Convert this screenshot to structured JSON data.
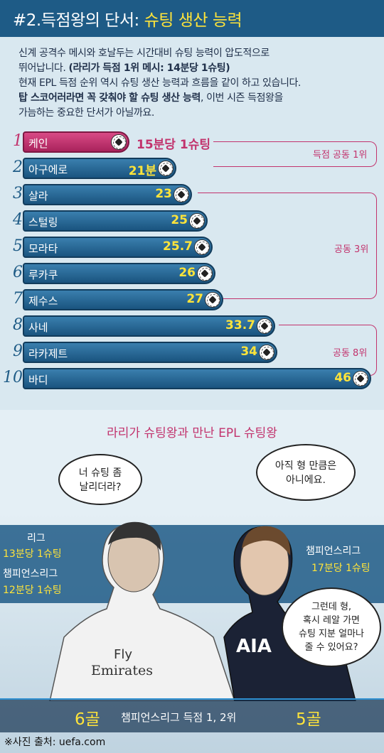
{
  "header": {
    "prefix": "#2.득점왕의 단서: ",
    "highlight": "슈팅 생산 능력"
  },
  "intro": {
    "line1": "신계 공격수 메시와 호날두는 시간대비 슈팅 능력이 압도적으로",
    "line2a": "뛰어납니다. ",
    "line2b": "(라리가 득점 1위 메시: 14분당 1슈팅)",
    "line3": "현재 EPL 득점 순위 역시 슈팅 생산 능력과 흐름을 같이 하고 있습니다.",
    "line4a": "탑 스코어러라면 꼭 갖춰야 할 슈팅 생산 능력",
    "line4b": ", 이번 시즌 득점왕을",
    "line5": "가늠하는 중요한 단서가 아닐까요."
  },
  "ranks": [
    {
      "rank": "1",
      "name": "케인",
      "value": "15분당 1슈팅",
      "minutes": 15
    },
    {
      "rank": "2",
      "name": "아구에로",
      "value": "21분",
      "minutes": 21
    },
    {
      "rank": "3",
      "name": "살라",
      "value": "23",
      "minutes": 23
    },
    {
      "rank": "4",
      "name": "스털링",
      "value": "25",
      "minutes": 25
    },
    {
      "rank": "5",
      "name": "모라타",
      "value": "25.7",
      "minutes": 25.7
    },
    {
      "rank": "6",
      "name": "루카쿠",
      "value": "26",
      "minutes": 26
    },
    {
      "rank": "7",
      "name": "제수스",
      "value": "27",
      "minutes": 27
    },
    {
      "rank": "8",
      "name": "사네",
      "value": "33.7",
      "minutes": 33.7
    },
    {
      "rank": "9",
      "name": "라카제트",
      "value": "34",
      "minutes": 34
    },
    {
      "rank": "10",
      "name": "바디",
      "value": "46",
      "minutes": 46
    }
  ],
  "groups": {
    "g1": "득점 공동 1위",
    "g3": "공동 3위",
    "g8": "공동 8위"
  },
  "comic": {
    "title": "라리가 슈팅왕과 만난 EPL 슈팅왕",
    "bubble_left_1": "너 슈팅 좀",
    "bubble_left_2": "날리더라?",
    "bubble_right_1": "아직 형 만큼은",
    "bubble_right_2": "아니에요.",
    "bubble_bottom_1": "그런데 형,",
    "bubble_bottom_2": "혹시 레알 가면",
    "bubble_bottom_3": "슈팅 지분 얼마나",
    "bubble_bottom_4": "줄 수 있어요?",
    "left_stats": {
      "league_label": "리그",
      "league_value": "13분당 1슈팅",
      "ucl_label": "챔피언스리그",
      "ucl_value": "12분당 1슈팅"
    },
    "right_stats": {
      "ucl_label": "챔피언스리그",
      "ucl_value": "17분당 1슈팅"
    },
    "jersey_left_1": "Fly",
    "jersey_left_2": "Emirates",
    "jersey_right": "AIA",
    "bottom_left": "6골",
    "bottom_mid": "챔피언스리그 득점 1, 2위",
    "bottom_right": "5골",
    "credit": "※사진 출처: uefa.com"
  }
}
